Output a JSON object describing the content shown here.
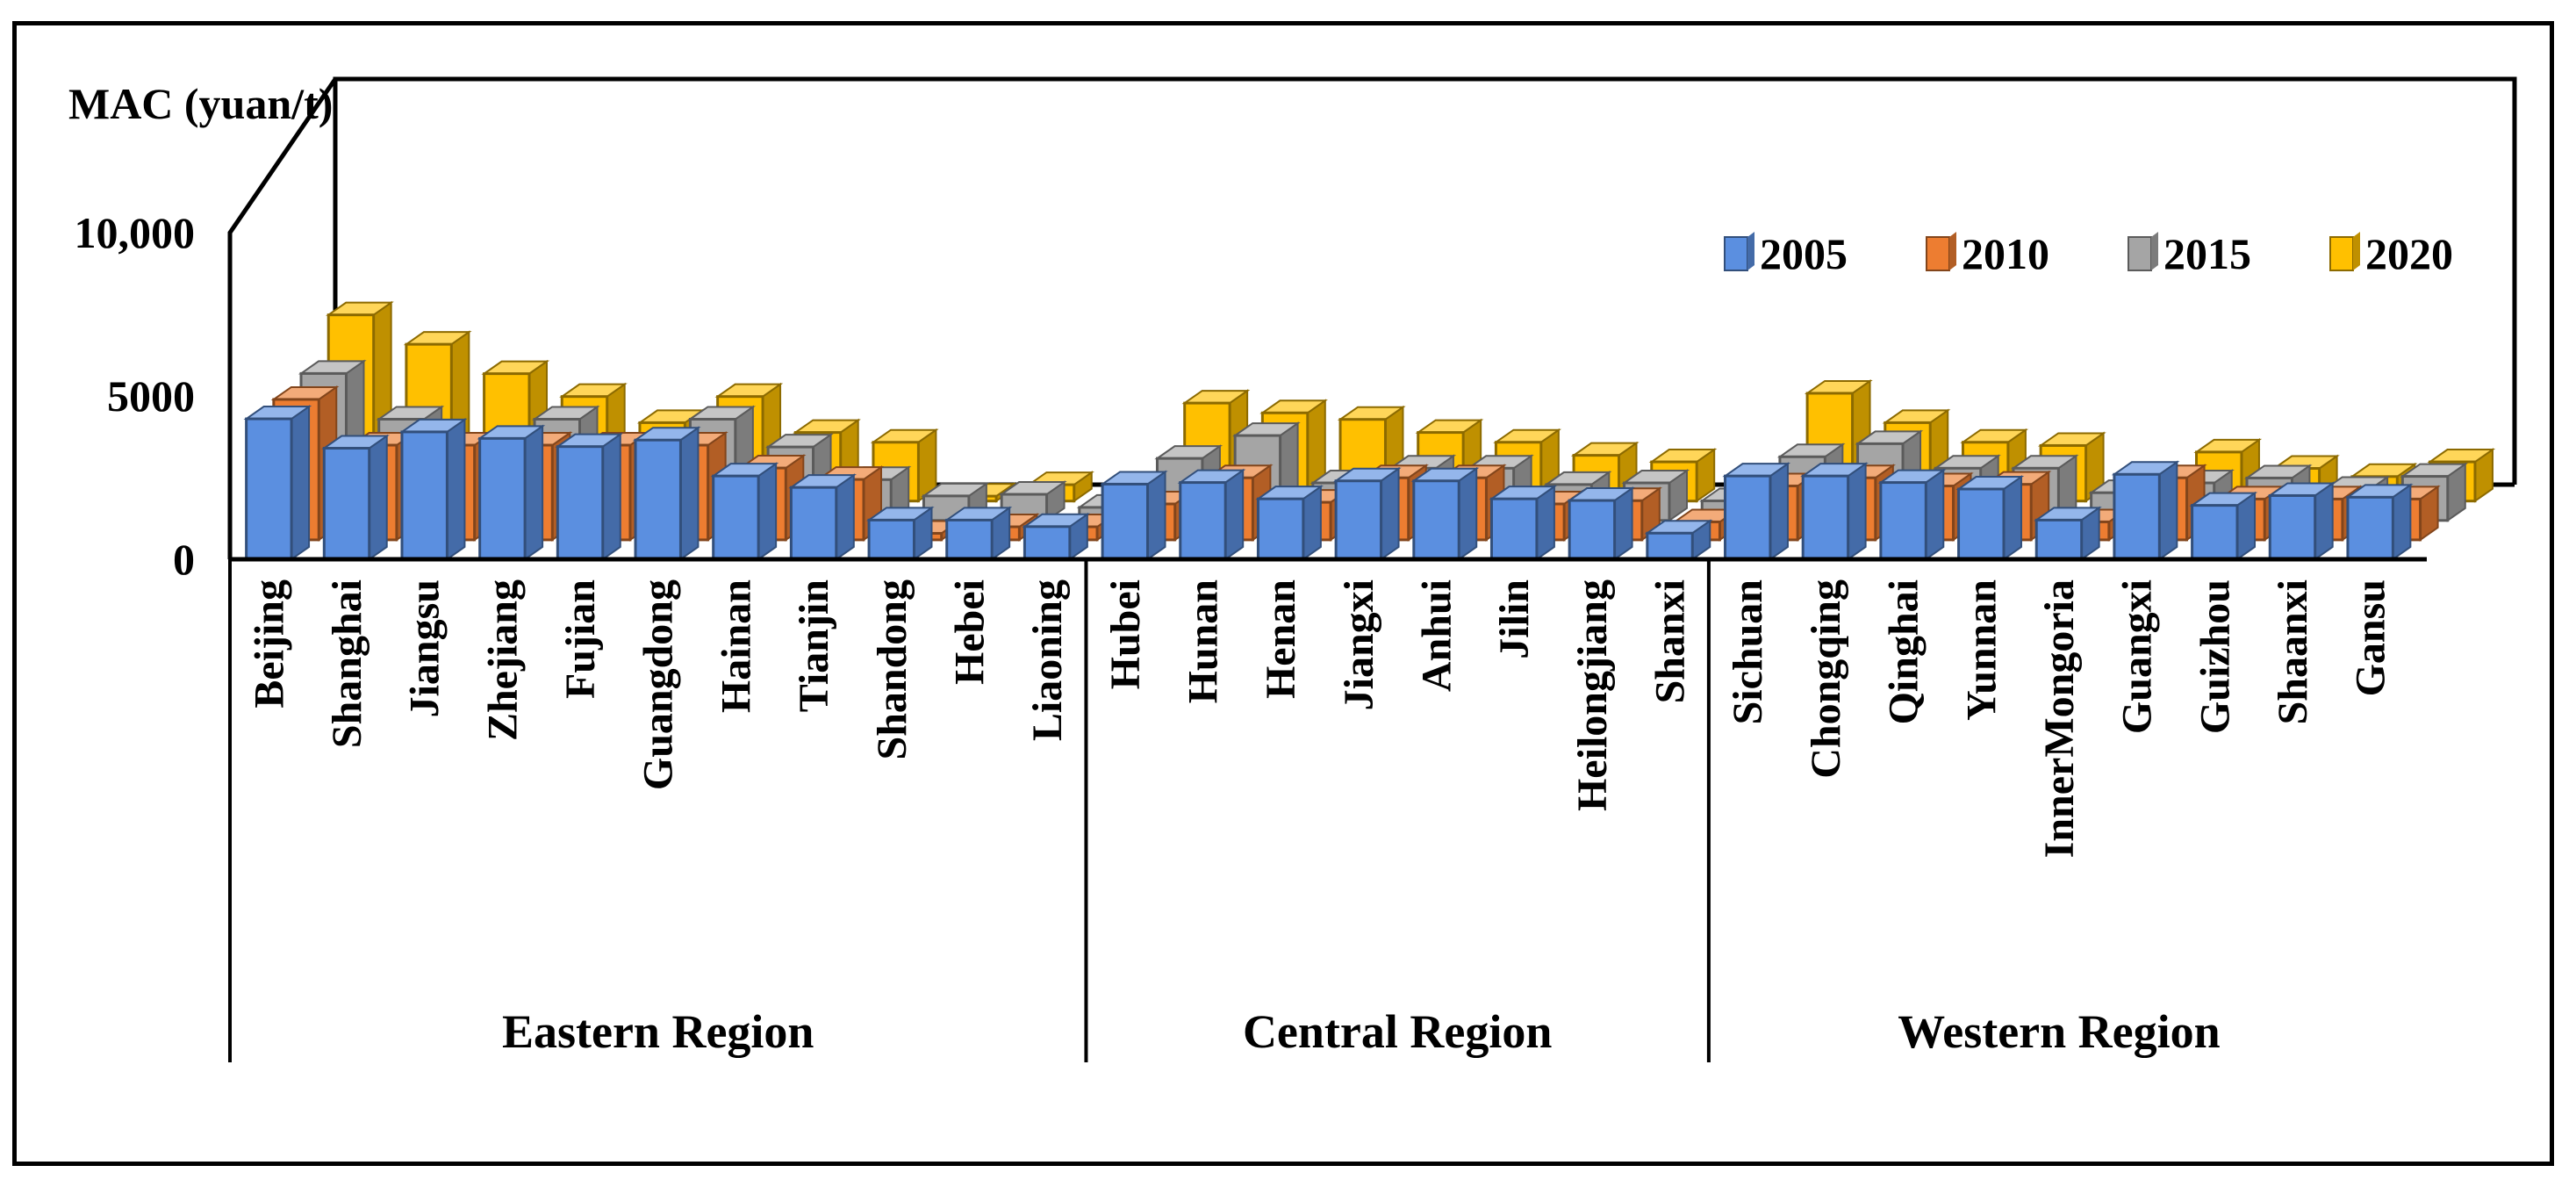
{
  "chart_data": {
    "type": "bar",
    "ylabel": "MAC (yuan/t)",
    "ylim": [
      0,
      10000
    ],
    "yticks": [
      {
        "value": 0,
        "label": "0"
      },
      {
        "value": 5000,
        "label": "5000"
      },
      {
        "value": 10000,
        "label": "10,000"
      }
    ],
    "legend_position": "top-right",
    "regions": [
      {
        "name": "Eastern Region",
        "start": 0,
        "end": 10
      },
      {
        "name": "Central Region",
        "start": 11,
        "end": 18
      },
      {
        "name": "Western Region",
        "start": 19,
        "end": 27
      }
    ],
    "categories": [
      "Beijing",
      "Shanghai",
      "Jiangsu",
      "Zhejiang",
      "Fujian",
      "Guangdong",
      "Hainan",
      "Tianjin",
      "Shandong",
      "Hebei",
      "Liaoning",
      "Hubei",
      "Hunan",
      "Henan",
      "Jiangxi",
      "Anhui",
      "Jilin",
      "Heilongjiang",
      "Shanxi",
      "Sichuan",
      "Chongqing",
      "Qinghai",
      "Yunnan",
      "InnerMongoria",
      "Guangxi",
      "Guizhou",
      "Shaanxi",
      "Gansu"
    ],
    "series": [
      {
        "name": "2005",
        "color": "#5B8FE0",
        "values": [
          4300,
          3400,
          3900,
          3700,
          3450,
          3650,
          2550,
          2200,
          1200,
          1200,
          1000,
          2300,
          2350,
          1850,
          2400,
          2400,
          1850,
          1800,
          800,
          2550,
          2550,
          2350,
          2150,
          1200,
          2600,
          1650,
          1950,
          1900
        ]
      },
      {
        "name": "2010",
        "color": "#ED7D31",
        "values": [
          4300,
          2900,
          2900,
          2900,
          2900,
          2900,
          2200,
          1850,
          200,
          400,
          400,
          1100,
          1900,
          1150,
          1900,
          1900,
          1100,
          1200,
          550,
          1650,
          1900,
          1650,
          1700,
          550,
          1900,
          1250,
          1250,
          1250
        ]
      },
      {
        "name": "2015",
        "color": "#A5A5A5",
        "values": [
          4500,
          3100,
          1600,
          3100,
          1800,
          3100,
          2250,
          1250,
          750,
          800,
          400,
          1900,
          2600,
          1150,
          1600,
          1600,
          1100,
          1150,
          600,
          1950,
          2350,
          1600,
          1600,
          850,
          1150,
          1300,
          950,
          1350
        ]
      },
      {
        "name": "2020",
        "color": "#FFC000",
        "values": [
          5700,
          4800,
          3900,
          3200,
          2400,
          3200,
          2100,
          1800,
          150,
          500,
          300,
          3000,
          2700,
          2500,
          2100,
          1800,
          1400,
          1200,
          700,
          3300,
          2400,
          1800,
          1700,
          300,
          1500,
          1000,
          750,
          1200
        ]
      }
    ]
  }
}
